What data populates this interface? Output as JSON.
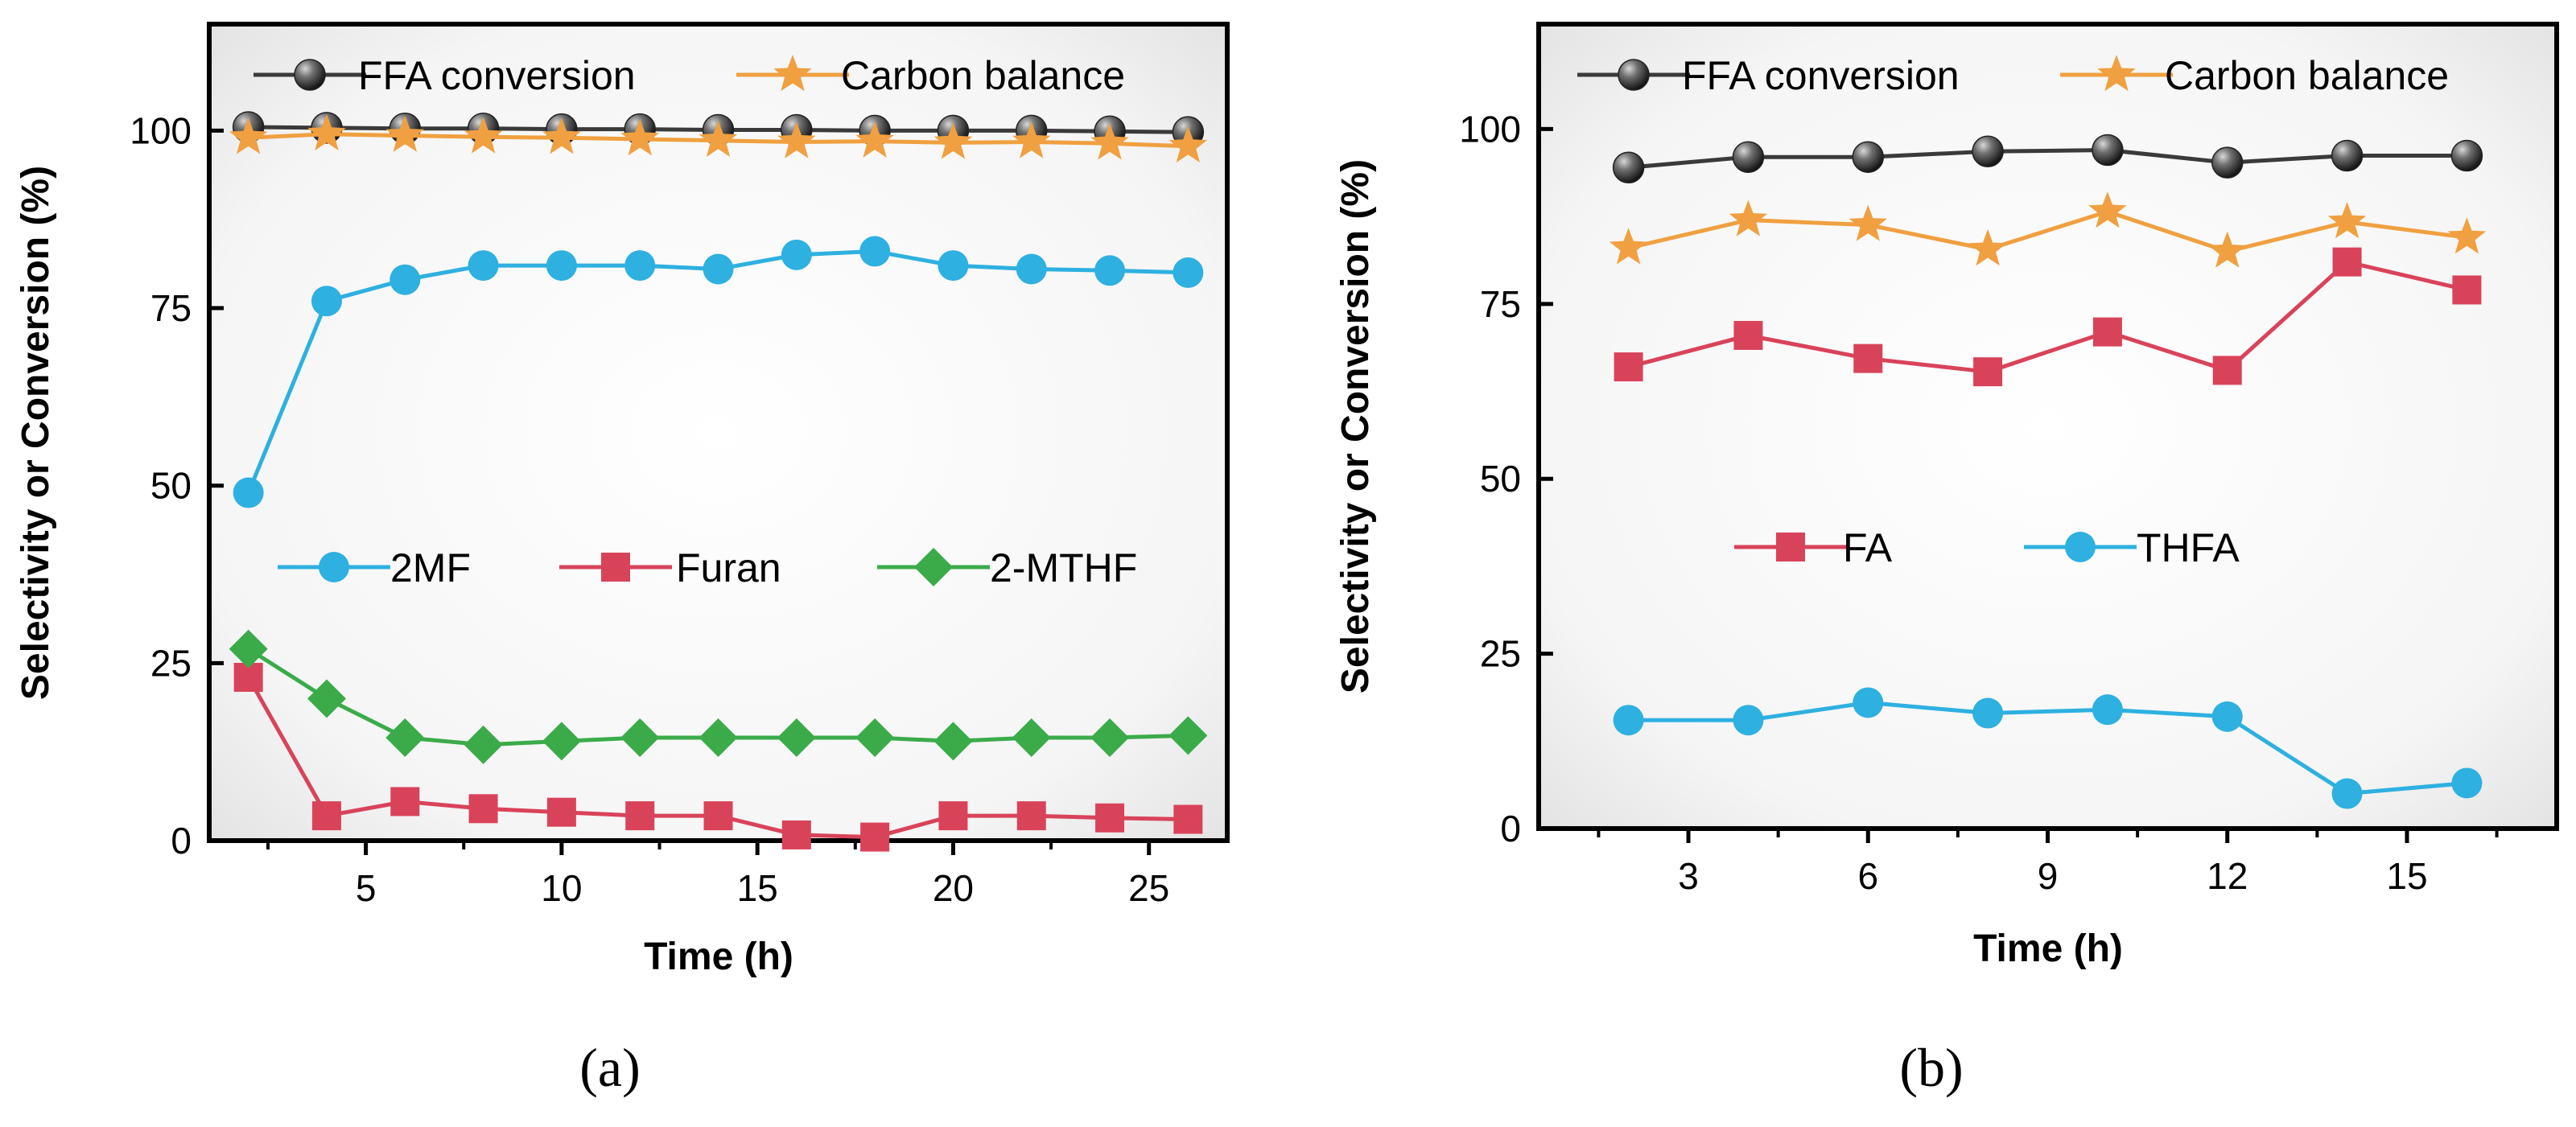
{
  "chart_data": [
    {
      "type": "line",
      "panel_label": "a",
      "xlabel": "Time (h)",
      "ylabel": "Selectivity or Conversion (%)",
      "xlim": [
        1,
        27
      ],
      "ylim": [
        0,
        115
      ],
      "xticks": [
        5,
        10,
        15,
        20,
        25
      ],
      "yticks": [
        0,
        25,
        50,
        75,
        100
      ],
      "grid": false,
      "legends": [
        {
          "placement": "top",
          "entries": [
            "FFA conversion",
            "Carbon balance"
          ]
        },
        {
          "placement": "middle",
          "entries": [
            "2MF",
            "Furan",
            "2-MTHF"
          ]
        }
      ],
      "x": [
        2,
        4,
        6,
        8,
        10,
        12,
        14,
        16,
        18,
        20,
        22,
        24,
        26
      ],
      "series": [
        {
          "name": "FFA conversion",
          "color": "#3a3a3a",
          "marker": "sphere",
          "values": [
            100.5,
            100.4,
            100.3,
            100.3,
            100.2,
            100.2,
            100.1,
            100.1,
            100.0,
            100.0,
            100.0,
            99.9,
            99.8
          ]
        },
        {
          "name": "Carbon balance",
          "color": "#f0a040",
          "marker": "star",
          "values": [
            99.0,
            99.5,
            99.3,
            99.1,
            99.0,
            98.8,
            98.6,
            98.4,
            98.5,
            98.3,
            98.4,
            98.2,
            97.8
          ]
        },
        {
          "name": "2MF",
          "color": "#2eb0e0",
          "marker": "circle",
          "values": [
            49,
            76,
            79,
            81,
            81,
            81,
            80.5,
            82.5,
            83,
            81,
            80.5,
            80.3,
            80
          ]
        },
        {
          "name": "Furan",
          "color": "#d9435a",
          "marker": "square",
          "values": [
            23,
            3.5,
            5.5,
            4.5,
            4,
            3.5,
            3.5,
            0.8,
            0.5,
            3.5,
            3.5,
            3.2,
            3
          ]
        },
        {
          "name": "2-MTHF",
          "color": "#3bab4a",
          "marker": "diamond",
          "values": [
            27,
            20,
            14.5,
            13.5,
            14,
            14.5,
            14.5,
            14.5,
            14.5,
            14,
            14.5,
            14.5,
            14.8
          ]
        }
      ]
    },
    {
      "type": "line",
      "panel_label": "b",
      "xlabel": "Time (h)",
      "ylabel": "Selectivity or Conversion (%)",
      "xlim": [
        0.5,
        17.5
      ],
      "ylim": [
        0,
        115
      ],
      "xticks": [
        3,
        6,
        9,
        12,
        15
      ],
      "yticks": [
        0,
        25,
        50,
        75,
        100
      ],
      "grid": false,
      "legends": [
        {
          "placement": "top",
          "entries": [
            "FFA conversion",
            "Carbon balance"
          ]
        },
        {
          "placement": "middle",
          "entries": [
            "FA",
            "THFA"
          ]
        }
      ],
      "x": [
        2,
        4,
        6,
        8,
        10,
        12,
        14,
        16
      ],
      "series": [
        {
          "name": "FFA conversion",
          "color": "#3a3a3a",
          "marker": "sphere",
          "values": [
            94.5,
            96,
            96,
            96.8,
            97,
            95.2,
            96.2,
            96.2
          ]
        },
        {
          "name": "Carbon balance",
          "color": "#f0a040",
          "marker": "star",
          "values": [
            83,
            87,
            86.3,
            82.8,
            88.2,
            82.5,
            86.7,
            84.5
          ]
        },
        {
          "name": "FA",
          "color": "#d9435a",
          "marker": "square",
          "values": [
            66,
            70.5,
            67.2,
            65.3,
            71,
            65.5,
            81,
            77
          ]
        },
        {
          "name": "THFA",
          "color": "#2eb0e0",
          "marker": "circle",
          "values": [
            15.5,
            15.5,
            18,
            16.5,
            17,
            16,
            5,
            6.5
          ]
        }
      ]
    }
  ]
}
